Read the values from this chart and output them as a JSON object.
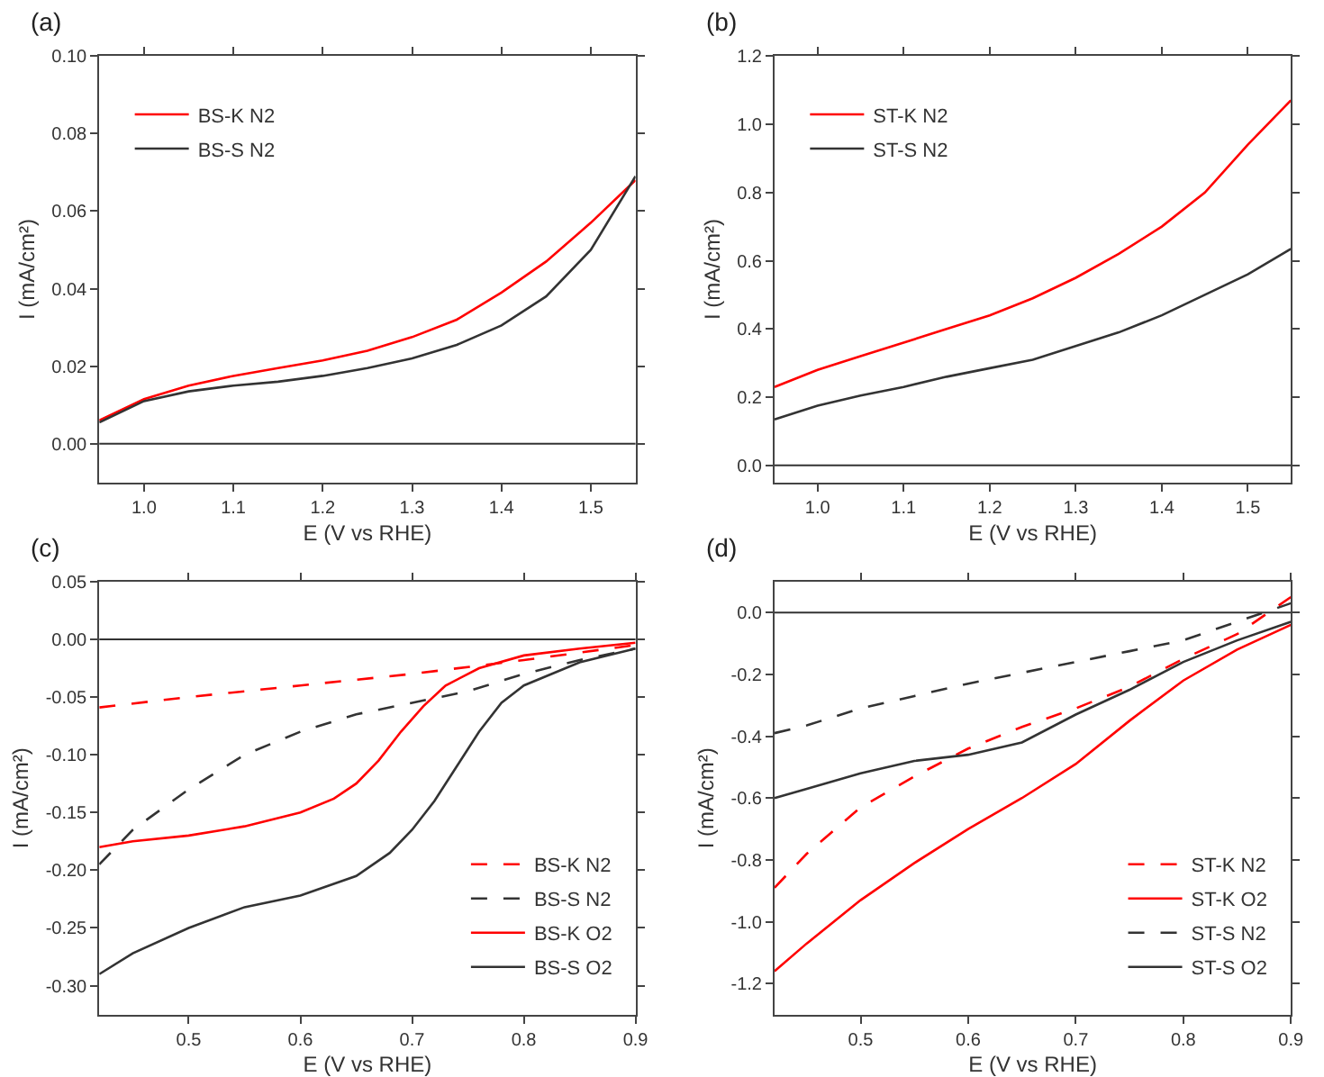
{
  "chart_data": [
    {
      "type": "line",
      "title": "(a)",
      "xlabel": "E (V vs RHE)",
      "ylabel": "I (mA/cm²)",
      "xlim": [
        0.95,
        1.55
      ],
      "ylim": [
        -0.01,
        0.1
      ],
      "xticks": [
        {
          "value": 1.0,
          "label": "1.0"
        },
        1.1,
        1.2,
        1.3,
        1.4,
        1.5
      ],
      "yticks": [
        {
          "value": 0,
          "label": "0.00"
        },
        0.02,
        0.04,
        0.06,
        0.08,
        {
          "value": 0.1,
          "label": "0.10"
        }
      ],
      "legend": "top left",
      "marker": "none",
      "ref_lines": [
        {
          "axis": "y",
          "value": 0,
          "color": "#333333"
        }
      ],
      "x": [
        0.95,
        1.0,
        1.05,
        1.1,
        1.15,
        1.2,
        1.25,
        1.3,
        1.35,
        1.4,
        1.45,
        1.5,
        1.55
      ],
      "series": [
        {
          "name": "BS-K N2",
          "color": "#ff0000",
          "line_style": "solid",
          "values": [
            0.006,
            0.0115,
            0.015,
            0.0175,
            0.0195,
            0.0215,
            0.024,
            0.0275,
            0.032,
            0.039,
            0.047,
            0.057,
            0.068
          ]
        },
        {
          "name": "BS-S N2",
          "color": "#333333",
          "line_style": "solid",
          "values": [
            0.0055,
            0.011,
            0.0135,
            0.015,
            0.016,
            0.0175,
            0.0195,
            0.022,
            0.0255,
            0.0305,
            0.038,
            0.05,
            0.069
          ]
        }
      ]
    },
    {
      "type": "line",
      "title": "(b)",
      "xlabel": "E (V vs RHE)",
      "ylabel": "I (mA/cm²)",
      "xlim": [
        0.95,
        1.55
      ],
      "ylim": [
        -0.05,
        1.2
      ],
      "xticks": [
        {
          "value": 1.0,
          "label": "1.0"
        },
        1.1,
        1.2,
        1.3,
        1.4,
        1.5
      ],
      "yticks": [
        {
          "value": 0,
          "label": "0.0"
        },
        0.2,
        0.4,
        0.6,
        0.8,
        {
          "value": 1.0,
          "label": "1.0"
        },
        1.2
      ],
      "legend": "top left",
      "marker": "none",
      "ref_lines": [
        {
          "axis": "y",
          "value": 0,
          "color": "#333333"
        }
      ],
      "x": [
        0.95,
        1.0,
        1.05,
        1.1,
        1.15,
        1.2,
        1.25,
        1.3,
        1.35,
        1.4,
        1.45,
        1.5,
        1.55
      ],
      "series": [
        {
          "name": "ST-K N2",
          "color": "#ff0000",
          "line_style": "solid",
          "values": [
            0.23,
            0.28,
            0.32,
            0.36,
            0.4,
            0.44,
            0.49,
            0.55,
            0.62,
            0.7,
            0.8,
            0.94,
            1.07
          ]
        },
        {
          "name": "ST-S N2",
          "color": "#333333",
          "line_style": "solid",
          "values": [
            0.135,
            0.175,
            0.205,
            0.23,
            0.26,
            0.285,
            0.31,
            0.35,
            0.39,
            0.44,
            0.5,
            0.56,
            0.635
          ]
        }
      ]
    },
    {
      "type": "line",
      "title": "(c)",
      "xlabel": "E (V vs RHE)",
      "ylabel": "I (mA/cm²)",
      "xlim": [
        0.42,
        0.9
      ],
      "ylim": [
        -0.325,
        0.05
      ],
      "xticks": [
        0.5,
        0.6,
        0.7,
        0.8,
        0.9
      ],
      "yticks": [
        {
          "value": -0.3,
          "label": "-0.30"
        },
        {
          "value": -0.25,
          "label": "-0.25"
        },
        {
          "value": -0.2,
          "label": "-0.20"
        },
        {
          "value": -0.15,
          "label": "-0.15"
        },
        {
          "value": -0.1,
          "label": "-0.10"
        },
        {
          "value": -0.05,
          "label": "-0.05"
        },
        {
          "value": 0,
          "label": "0.00"
        },
        0.05
      ],
      "legend": "bottom right",
      "marker": "none",
      "ref_lines": [
        {
          "axis": "y",
          "value": 0,
          "color": "#333333"
        }
      ],
      "series": [
        {
          "name": "BS-K N2",
          "color": "#ff0000",
          "line_style": "dashed",
          "x": [
            0.42,
            0.5,
            0.6,
            0.7,
            0.8,
            0.9
          ],
          "values": [
            -0.059,
            -0.05,
            -0.04,
            -0.03,
            -0.018,
            -0.005
          ]
        },
        {
          "name": "BS-S N2",
          "color": "#333333",
          "line_style": "dashed",
          "x": [
            0.42,
            0.45,
            0.5,
            0.55,
            0.6,
            0.65,
            0.7,
            0.75,
            0.8,
            0.85,
            0.9
          ],
          "values": [
            -0.195,
            -0.165,
            -0.13,
            -0.1,
            -0.08,
            -0.065,
            -0.055,
            -0.045,
            -0.03,
            -0.018,
            -0.008
          ]
        },
        {
          "name": "BS-K O2",
          "color": "#ff0000",
          "line_style": "solid",
          "x": [
            0.42,
            0.45,
            0.5,
            0.55,
            0.6,
            0.63,
            0.65,
            0.67,
            0.69,
            0.71,
            0.73,
            0.76,
            0.8,
            0.85,
            0.9
          ],
          "values": [
            -0.18,
            -0.175,
            -0.17,
            -0.162,
            -0.15,
            -0.138,
            -0.125,
            -0.105,
            -0.08,
            -0.058,
            -0.04,
            -0.025,
            -0.014,
            -0.008,
            -0.003
          ]
        },
        {
          "name": "BS-S O2",
          "color": "#333333",
          "line_style": "solid",
          "x": [
            0.42,
            0.45,
            0.5,
            0.55,
            0.6,
            0.65,
            0.68,
            0.7,
            0.72,
            0.74,
            0.76,
            0.78,
            0.8,
            0.85,
            0.9
          ],
          "values": [
            -0.29,
            -0.272,
            -0.25,
            -0.232,
            -0.222,
            -0.205,
            -0.185,
            -0.165,
            -0.14,
            -0.11,
            -0.08,
            -0.055,
            -0.04,
            -0.02,
            -0.008
          ]
        }
      ]
    },
    {
      "type": "line",
      "title": "(d)",
      "xlabel": "E (V vs RHE)",
      "ylabel": "I (mA/cm²)",
      "xlim": [
        0.42,
        0.9
      ],
      "ylim": [
        -1.3,
        0.1
      ],
      "xticks": [
        0.5,
        0.6,
        0.7,
        0.8,
        0.9
      ],
      "yticks": [
        -1.2,
        {
          "value": -1.0,
          "label": "-1.0"
        },
        -0.8,
        -0.6,
        -0.4,
        -0.2,
        {
          "value": 0,
          "label": "0.0"
        }
      ],
      "legend": "bottom right",
      "marker": "none",
      "ref_lines": [
        {
          "axis": "y",
          "value": 0,
          "color": "#333333"
        }
      ],
      "x": [
        0.42,
        0.45,
        0.5,
        0.55,
        0.6,
        0.65,
        0.7,
        0.75,
        0.8,
        0.85,
        0.9
      ],
      "series": [
        {
          "name": "ST-K N2",
          "color": "#ff0000",
          "line_style": "dashed",
          "values": [
            -0.89,
            -0.78,
            -0.63,
            -0.53,
            -0.44,
            -0.37,
            -0.31,
            -0.24,
            -0.15,
            -0.07,
            0.05
          ]
        },
        {
          "name": "ST-K O2",
          "color": "#ff0000",
          "line_style": "solid",
          "values": [
            -1.16,
            -1.07,
            -0.93,
            -0.81,
            -0.7,
            -0.6,
            -0.49,
            -0.35,
            -0.22,
            -0.12,
            -0.04
          ]
        },
        {
          "name": "ST-S N2",
          "color": "#333333",
          "line_style": "dashed",
          "values": [
            -0.39,
            -0.365,
            -0.31,
            -0.27,
            -0.23,
            -0.195,
            -0.16,
            -0.125,
            -0.09,
            -0.03,
            0.03
          ]
        },
        {
          "name": "ST-S O2",
          "color": "#333333",
          "line_style": "solid",
          "values": [
            -0.6,
            -0.57,
            -0.52,
            -0.48,
            -0.46,
            -0.42,
            -0.33,
            -0.25,
            -0.16,
            -0.09,
            -0.03
          ]
        }
      ]
    }
  ]
}
